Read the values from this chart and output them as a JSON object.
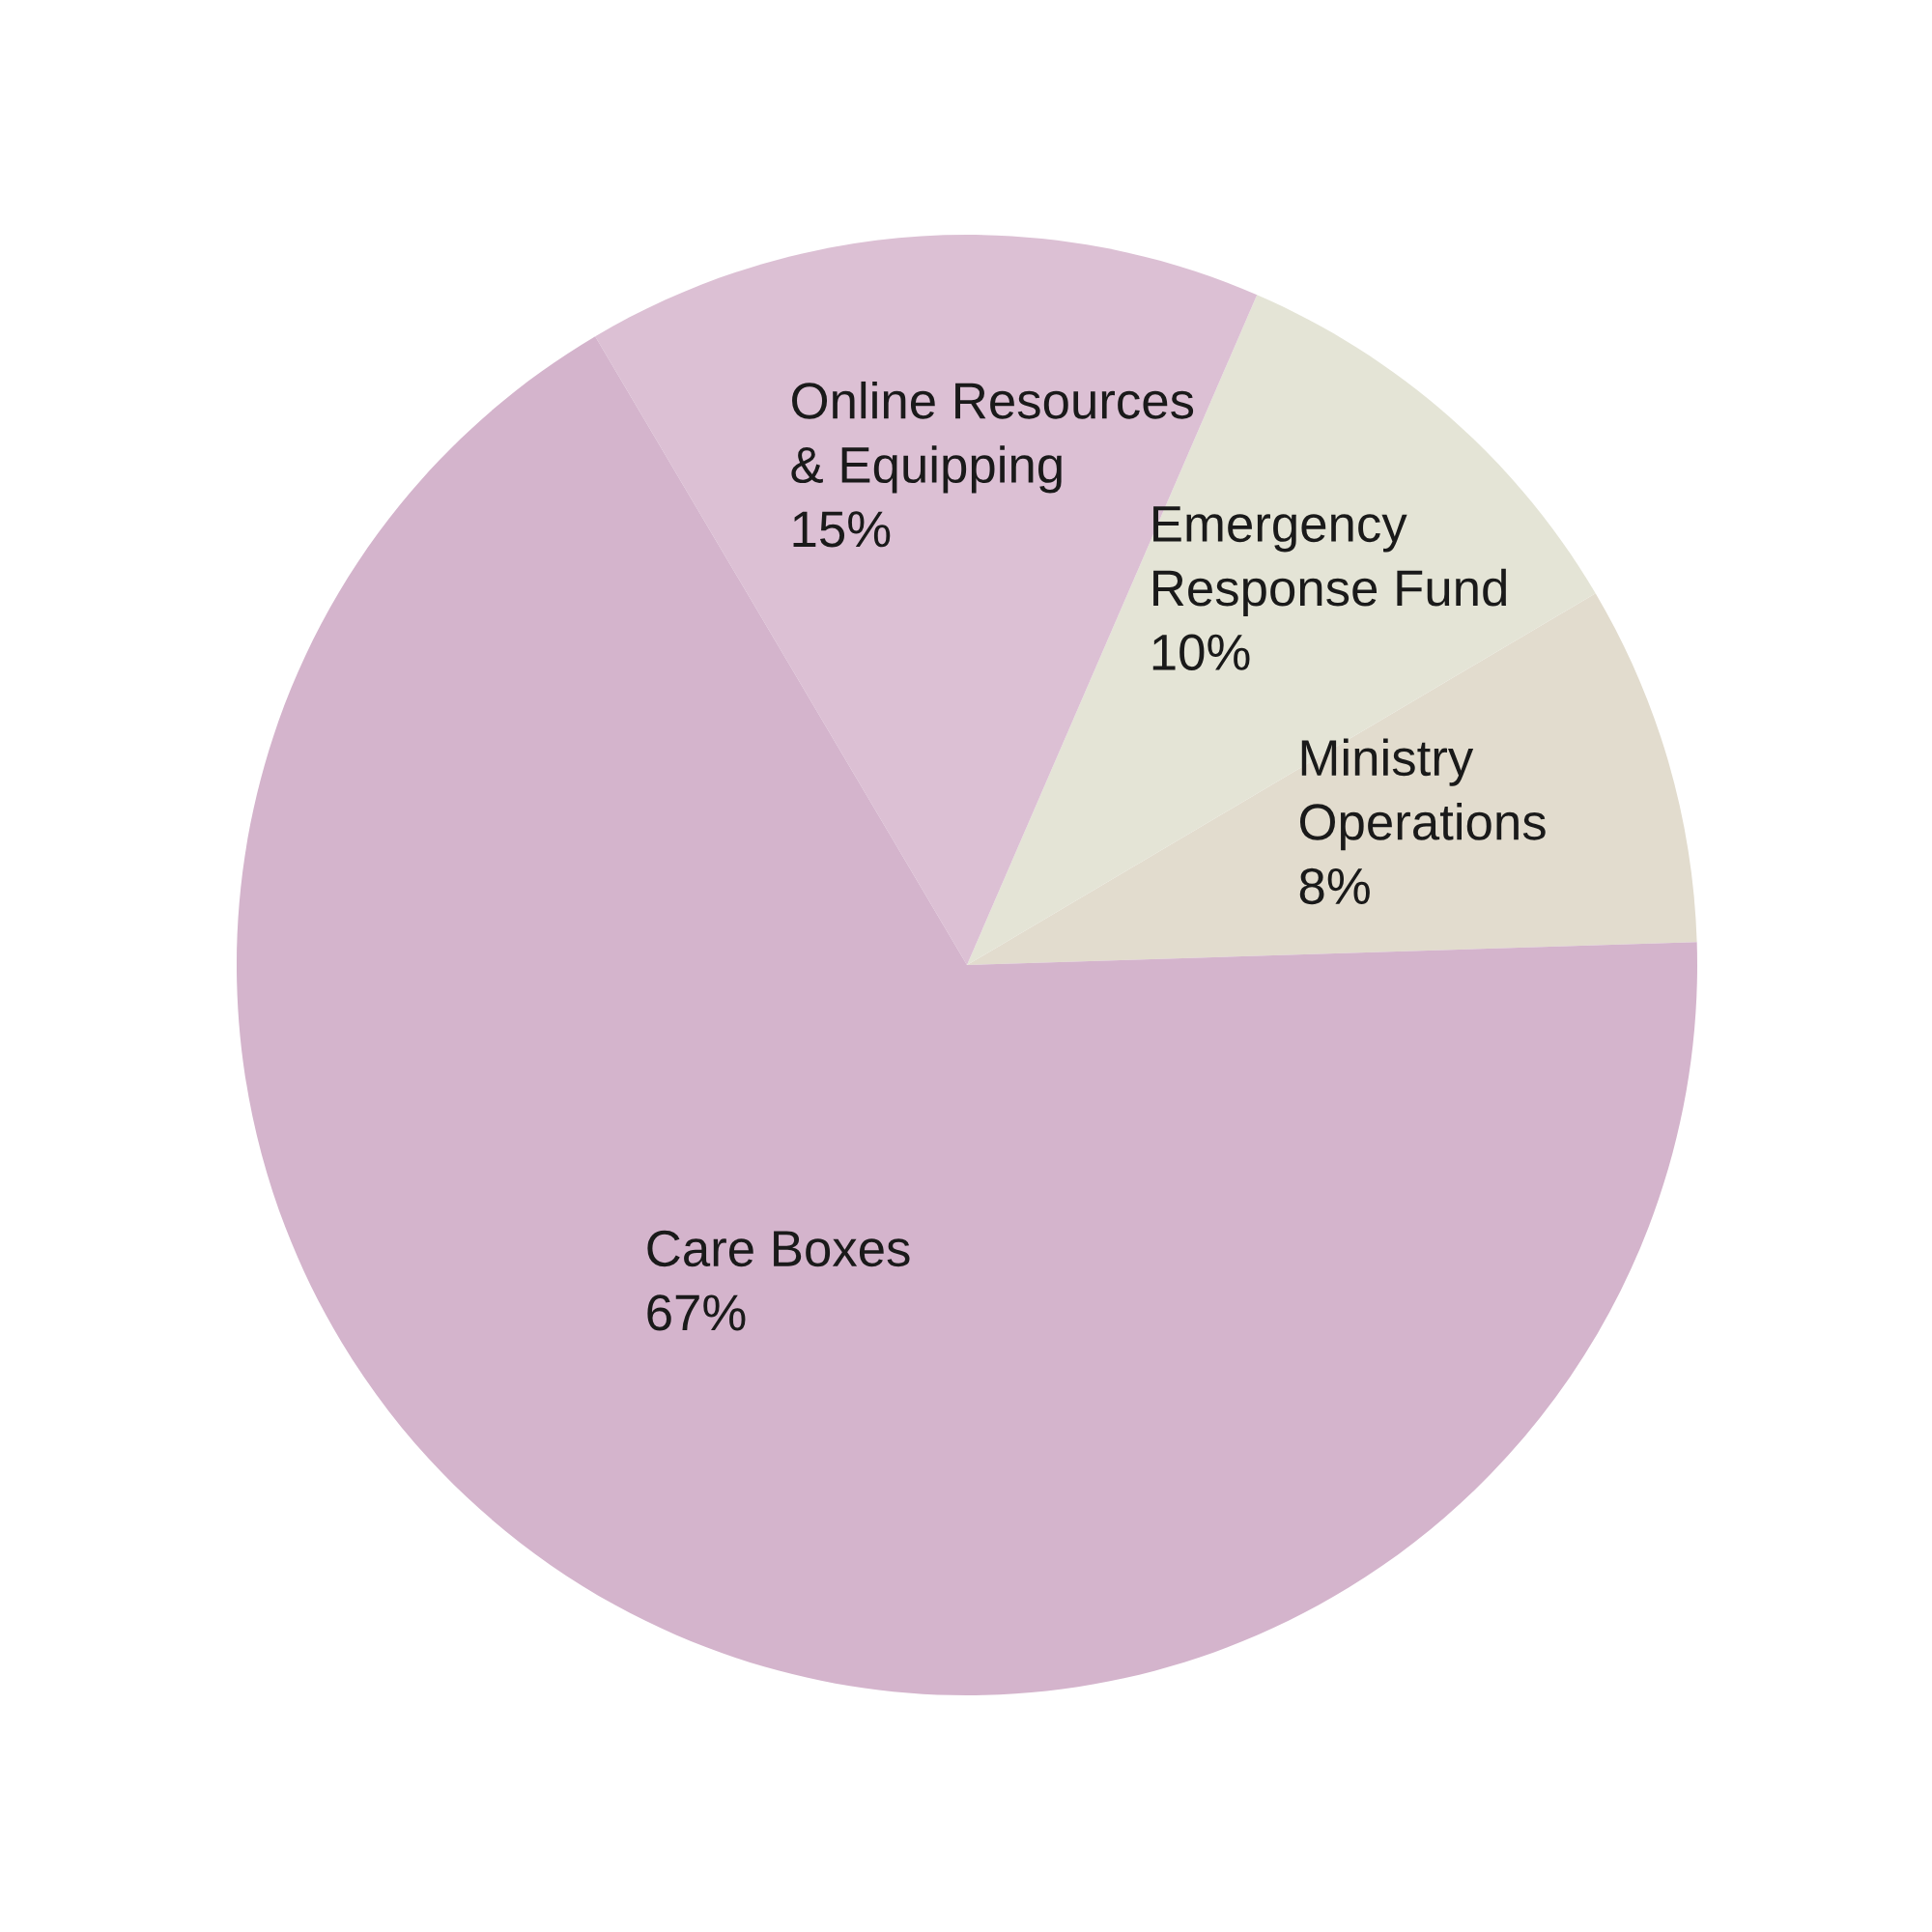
{
  "chart_data": {
    "type": "pie",
    "categories": [
      "Ministry\nOperations",
      "Emergency\nResponse Fund",
      "Online Resources\n& Equipping",
      "Care Boxes"
    ],
    "values": [
      8,
      10,
      15,
      67
    ],
    "value_labels": [
      "8%",
      "10%",
      "15%",
      "67%"
    ],
    "colors": [
      "#e2dcce",
      "#e4e4d6",
      "#dcc0d4",
      "#d4b4cc"
    ]
  }
}
